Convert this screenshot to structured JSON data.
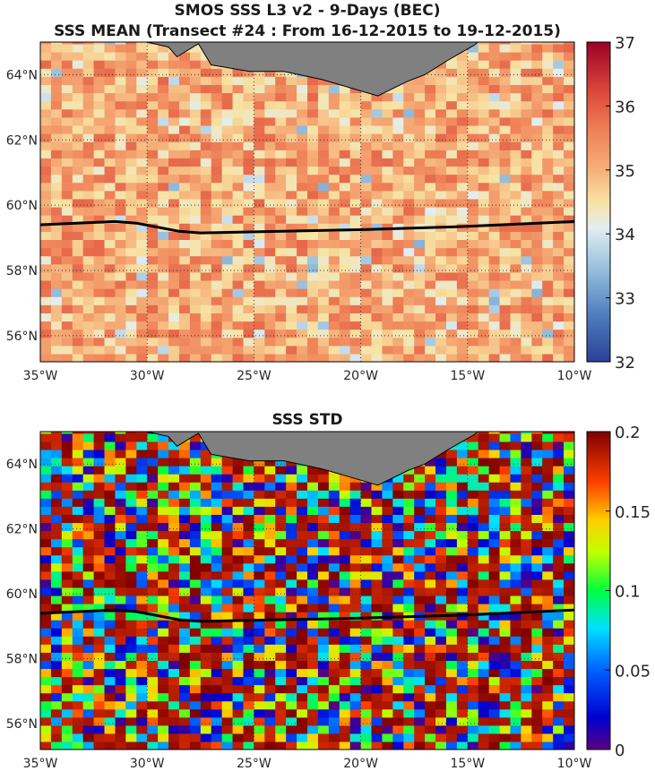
{
  "panels": [
    {
      "title_lines": [
        "SMOS SSS L3 v2 - 9-Days (BEC)",
        "SSS MEAN (Transect #24 : From 16-12-2015 to 19-12-2015)"
      ],
      "title": "",
      "colormap": "parula-like-reverse-red",
      "colorbar": {
        "min": 32,
        "max": 37,
        "ticks": [
          "32",
          "33",
          "34",
          "35",
          "36",
          "37"
        ]
      },
      "lon_ticks": [
        "35°W",
        "30°W",
        "25°W",
        "20°W",
        "15°W",
        "10°W"
      ],
      "lat_ticks": [
        "56°N",
        "58°N",
        "60°N",
        "62°N",
        "64°N"
      ]
    },
    {
      "title": "SSS STD",
      "colormap": "jet",
      "colorbar": {
        "min": 0,
        "max": 0.2,
        "ticks": [
          "0",
          "0.05",
          "0.1",
          "0.15",
          "0.2"
        ]
      },
      "lon_ticks": [
        "35°W",
        "30°W",
        "25°W",
        "20°W",
        "15°W",
        "10°W"
      ],
      "lat_ticks": [
        "56°N",
        "58°N",
        "60°N",
        "62°N",
        "64°N"
      ]
    }
  ],
  "map_extent": {
    "lon_min": -35,
    "lon_max": -10,
    "lat_min": 55.2,
    "lat_max": 65
  },
  "transect": {
    "color": "#000000",
    "points": [
      [
        -35,
        59.4
      ],
      [
        -31.5,
        59.5
      ],
      [
        -30.5,
        59.45
      ],
      [
        -28.5,
        59.2
      ],
      [
        -27.5,
        59.15
      ],
      [
        -20,
        59.25
      ],
      [
        -15,
        59.35
      ],
      [
        -10,
        59.5
      ]
    ]
  },
  "land_color": "#808080",
  "iceland_coast": [
    [
      -30,
      65
    ],
    [
      -29,
      64.85
    ],
    [
      -28.6,
      64.55
    ],
    [
      -27.6,
      64.95
    ],
    [
      -27,
      64.3
    ],
    [
      -25.2,
      64.1
    ],
    [
      -23.6,
      64.1
    ],
    [
      -21.8,
      63.85
    ],
    [
      -20.5,
      63.6
    ],
    [
      -19.2,
      63.35
    ],
    [
      -17.8,
      63.8
    ],
    [
      -17,
      64.0
    ],
    [
      -15.9,
      64.45
    ],
    [
      -14.7,
      64.9
    ],
    [
      -14.5,
      65
    ]
  ]
}
